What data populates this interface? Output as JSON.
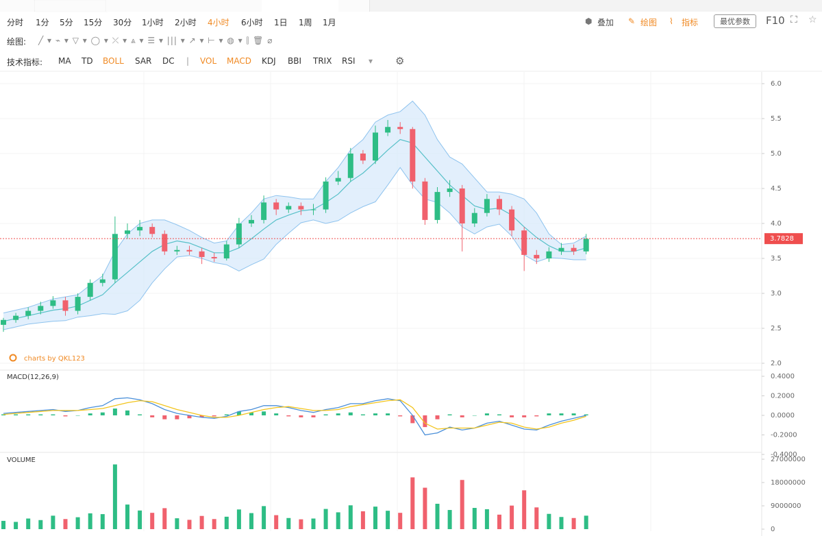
{
  "toolbar": {
    "periods": [
      "分时",
      "1分",
      "5分",
      "15分",
      "30分",
      "1小时",
      "2小时",
      "4小时",
      "6小时",
      "1日",
      "1周",
      "1月"
    ],
    "active_period": 7,
    "drawing_label": "绘图:",
    "indicator_label": "技术指标:",
    "indicators": [
      "MA",
      "TD",
      "BOLL",
      "SAR",
      "DC",
      "VOL",
      "MACD",
      "KDJ",
      "BBI",
      "TRIX",
      "RSI"
    ],
    "active_indicators": [
      2,
      5,
      6
    ],
    "actions": [
      "叠加",
      "绘图",
      "指标"
    ],
    "button": "最优参数",
    "f10": "F10",
    "accent_color": "#f08a24"
  },
  "chart_data": [
    {
      "type": "candlestick",
      "watermark": "charts by QKL123",
      "open": [
        2.55,
        2.62,
        2.68,
        2.75,
        2.82,
        2.9,
        2.75,
        2.95,
        3.15,
        3.2,
        3.85,
        3.9,
        3.95,
        3.85,
        3.6,
        3.62,
        3.6,
        3.52,
        3.5,
        3.7,
        4.0,
        4.05,
        4.3,
        4.2,
        4.25,
        4.2,
        4.2,
        4.6,
        4.65,
        5.0,
        4.9,
        5.3,
        5.38,
        5.35,
        4.6,
        4.05,
        4.45,
        4.5,
        4.0,
        4.15,
        4.35,
        4.2,
        3.9,
        3.55,
        3.5,
        3.6,
        3.65,
        3.6
      ],
      "high": [
        2.65,
        2.72,
        2.8,
        2.88,
        2.96,
        2.95,
        3.0,
        3.2,
        3.28,
        4.1,
        4.0,
        4.05,
        4.0,
        3.9,
        3.68,
        3.68,
        3.65,
        3.58,
        3.75,
        4.08,
        4.12,
        4.4,
        4.35,
        4.3,
        4.3,
        4.28,
        4.66,
        4.75,
        5.08,
        5.05,
        5.4,
        5.48,
        5.45,
        5.38,
        4.65,
        4.52,
        4.62,
        4.55,
        4.22,
        4.42,
        4.4,
        4.25,
        3.95,
        3.62,
        3.66,
        3.72,
        3.7,
        3.85
      ],
      "low": [
        2.45,
        2.58,
        2.63,
        2.7,
        2.78,
        2.68,
        2.7,
        2.9,
        3.1,
        3.15,
        3.78,
        3.82,
        3.8,
        3.55,
        3.55,
        3.55,
        3.42,
        3.45,
        3.47,
        3.65,
        3.95,
        4.0,
        4.12,
        4.15,
        4.12,
        4.12,
        4.15,
        4.55,
        4.6,
        4.85,
        4.85,
        5.25,
        5.28,
        4.5,
        3.98,
        4.0,
        4.38,
        3.6,
        3.95,
        4.1,
        4.12,
        3.82,
        3.32,
        3.42,
        3.45,
        3.55,
        3.55,
        3.56
      ],
      "close": [
        2.62,
        2.68,
        2.75,
        2.82,
        2.9,
        2.75,
        2.95,
        3.15,
        3.2,
        3.85,
        3.9,
        3.95,
        3.85,
        3.6,
        3.62,
        3.6,
        3.52,
        3.5,
        3.7,
        4.0,
        4.05,
        4.3,
        4.2,
        4.25,
        4.2,
        4.2,
        4.6,
        4.65,
        5.0,
        4.9,
        5.3,
        5.38,
        5.35,
        4.6,
        4.05,
        4.45,
        4.5,
        4.0,
        4.15,
        4.35,
        4.2,
        3.9,
        3.55,
        3.5,
        3.6,
        3.65,
        3.6,
        3.78
      ],
      "bands": {
        "upper": [
          2.72,
          2.76,
          2.8,
          2.86,
          2.92,
          2.95,
          2.98,
          3.12,
          3.25,
          3.6,
          3.85,
          4.0,
          4.05,
          4.05,
          3.98,
          3.9,
          3.8,
          3.72,
          3.75,
          3.98,
          4.15,
          4.35,
          4.4,
          4.38,
          4.35,
          4.35,
          4.6,
          4.8,
          5.05,
          5.2,
          5.45,
          5.55,
          5.6,
          5.75,
          5.55,
          5.2,
          4.95,
          4.85,
          4.65,
          4.45,
          4.45,
          4.42,
          4.35,
          4.15,
          3.85,
          3.7,
          3.72,
          3.82
        ],
        "middle": [
          2.6,
          2.64,
          2.68,
          2.72,
          2.76,
          2.78,
          2.82,
          2.9,
          2.98,
          3.15,
          3.3,
          3.45,
          3.6,
          3.7,
          3.75,
          3.72,
          3.65,
          3.58,
          3.58,
          3.65,
          3.78,
          3.92,
          4.05,
          4.12,
          4.18,
          4.2,
          4.3,
          4.42,
          4.6,
          4.72,
          4.88,
          5.05,
          5.2,
          5.15,
          4.95,
          4.75,
          4.55,
          4.4,
          4.25,
          4.2,
          4.22,
          4.12,
          3.95,
          3.8,
          3.68,
          3.6,
          3.6,
          3.65
        ],
        "lower": [
          2.48,
          2.52,
          2.56,
          2.58,
          2.6,
          2.61,
          2.66,
          2.68,
          2.71,
          2.7,
          2.75,
          2.9,
          3.15,
          3.35,
          3.52,
          3.54,
          3.5,
          3.44,
          3.41,
          3.32,
          3.41,
          3.49,
          3.7,
          3.86,
          4.01,
          4.05,
          4.0,
          4.04,
          4.15,
          4.24,
          4.31,
          4.55,
          4.8,
          4.55,
          4.35,
          4.3,
          4.15,
          3.95,
          3.85,
          3.95,
          3.99,
          3.82,
          3.55,
          3.45,
          3.51,
          3.5,
          3.48,
          3.48
        ],
        "fill_color": "#d8eafb",
        "edge_color": "#8ec3ee",
        "middle_color": "#56c0c8"
      },
      "up_color": "#2ebd85",
      "down_color": "#f0616d",
      "last_price": 3.7828,
      "last_price_color": "#ef4e4e",
      "ylim": [
        2,
        6
      ],
      "yticks": [
        {
          "value": 2,
          "label": "2.0"
        },
        2.5,
        {
          "value": 3,
          "label": "3.0"
        },
        3.5,
        {
          "value": 4,
          "label": "4.0"
        },
        4.5,
        {
          "value": 5,
          "label": "5.0"
        },
        5.5,
        {
          "value": 6,
          "label": "6.0"
        }
      ],
      "grid": true
    },
    {
      "type": "macd",
      "title": "MACD(12,26,9)",
      "lines": [
        {
          "color": "#4a8fd9",
          "values": [
            0.02,
            0.03,
            0.04,
            0.05,
            0.06,
            0.04,
            0.05,
            0.08,
            0.1,
            0.17,
            0.18,
            0.16,
            0.12,
            0.06,
            0.02,
            0.0,
            -0.02,
            -0.03,
            -0.01,
            0.04,
            0.06,
            0.1,
            0.1,
            0.08,
            0.05,
            0.03,
            0.06,
            0.08,
            0.12,
            0.12,
            0.15,
            0.17,
            0.15,
            0.0,
            -0.2,
            -0.18,
            -0.12,
            -0.15,
            -0.13,
            -0.08,
            -0.06,
            -0.1,
            -0.14,
            -0.15,
            -0.1,
            -0.06,
            -0.03,
            0.0
          ]
        },
        {
          "color": "#f2c41c",
          "values": [
            0.01,
            0.02,
            0.03,
            0.04,
            0.05,
            0.05,
            0.05,
            0.06,
            0.07,
            0.1,
            0.13,
            0.15,
            0.14,
            0.1,
            0.06,
            0.03,
            0.0,
            -0.02,
            -0.02,
            0.0,
            0.03,
            0.06,
            0.08,
            0.09,
            0.07,
            0.05,
            0.05,
            0.06,
            0.09,
            0.11,
            0.13,
            0.15,
            0.16,
            0.08,
            -0.08,
            -0.14,
            -0.13,
            -0.13,
            -0.13,
            -0.1,
            -0.07,
            -0.08,
            -0.12,
            -0.14,
            -0.12,
            -0.08,
            -0.05,
            -0.01
          ]
        }
      ],
      "histogram": {
        "up_color": "#2ebd85",
        "down_color": "#f0616d",
        "values": [
          0.01,
          0.01,
          0.01,
          0.01,
          0.01,
          -0.01,
          0,
          0.02,
          0.03,
          0.07,
          0.05,
          0.01,
          -0.02,
          -0.04,
          -0.04,
          -0.03,
          -0.02,
          -0.01,
          0.01,
          0.04,
          0.03,
          0.04,
          0.02,
          -0.01,
          -0.02,
          -0.02,
          0.01,
          0.02,
          0.03,
          0.01,
          0.02,
          0.02,
          -0.01,
          -0.08,
          -0.12,
          -0.04,
          0.01,
          -0.02,
          0,
          0.02,
          0.01,
          -0.02,
          -0.02,
          -0.01,
          0.02,
          0.02,
          0.02,
          0.01
        ]
      },
      "ylim": [
        -0.4,
        0.4
      ],
      "yticks": [
        {
          "value": -0.4,
          "label": "-0.4000"
        },
        {
          "value": -0.2,
          "label": "-0.2000"
        },
        {
          "value": 0,
          "label": "0.0000"
        },
        {
          "value": 0.2,
          "label": "0.2000"
        },
        {
          "value": 0.4,
          "label": "0.4000"
        }
      ]
    },
    {
      "type": "volume",
      "title": "VOLUME",
      "values": [
        3200000,
        2800000,
        4100000,
        3500000,
        5200000,
        3900000,
        4600000,
        6100000,
        5800000,
        25000000,
        9500000,
        7200000,
        6300000,
        8100000,
        4200000,
        3600000,
        5100000,
        3900000,
        4800000,
        7600000,
        6200000,
        8900000,
        5400000,
        4300000,
        3800000,
        4100000,
        7800000,
        6500000,
        9200000,
        6900000,
        8700000,
        7100000,
        6300000,
        20000000,
        16000000,
        9800000,
        7400000,
        19000000,
        8200000,
        7700000,
        5600000,
        9100000,
        15000000,
        8400000,
        5900000,
        4700000,
        4300000,
        5200000
      ],
      "up_color": "#2ebd85",
      "down_color": "#f0616d",
      "ylim": [
        0,
        27000000
      ],
      "yticks": [
        0,
        9000000,
        18000000,
        27000000
      ]
    }
  ]
}
